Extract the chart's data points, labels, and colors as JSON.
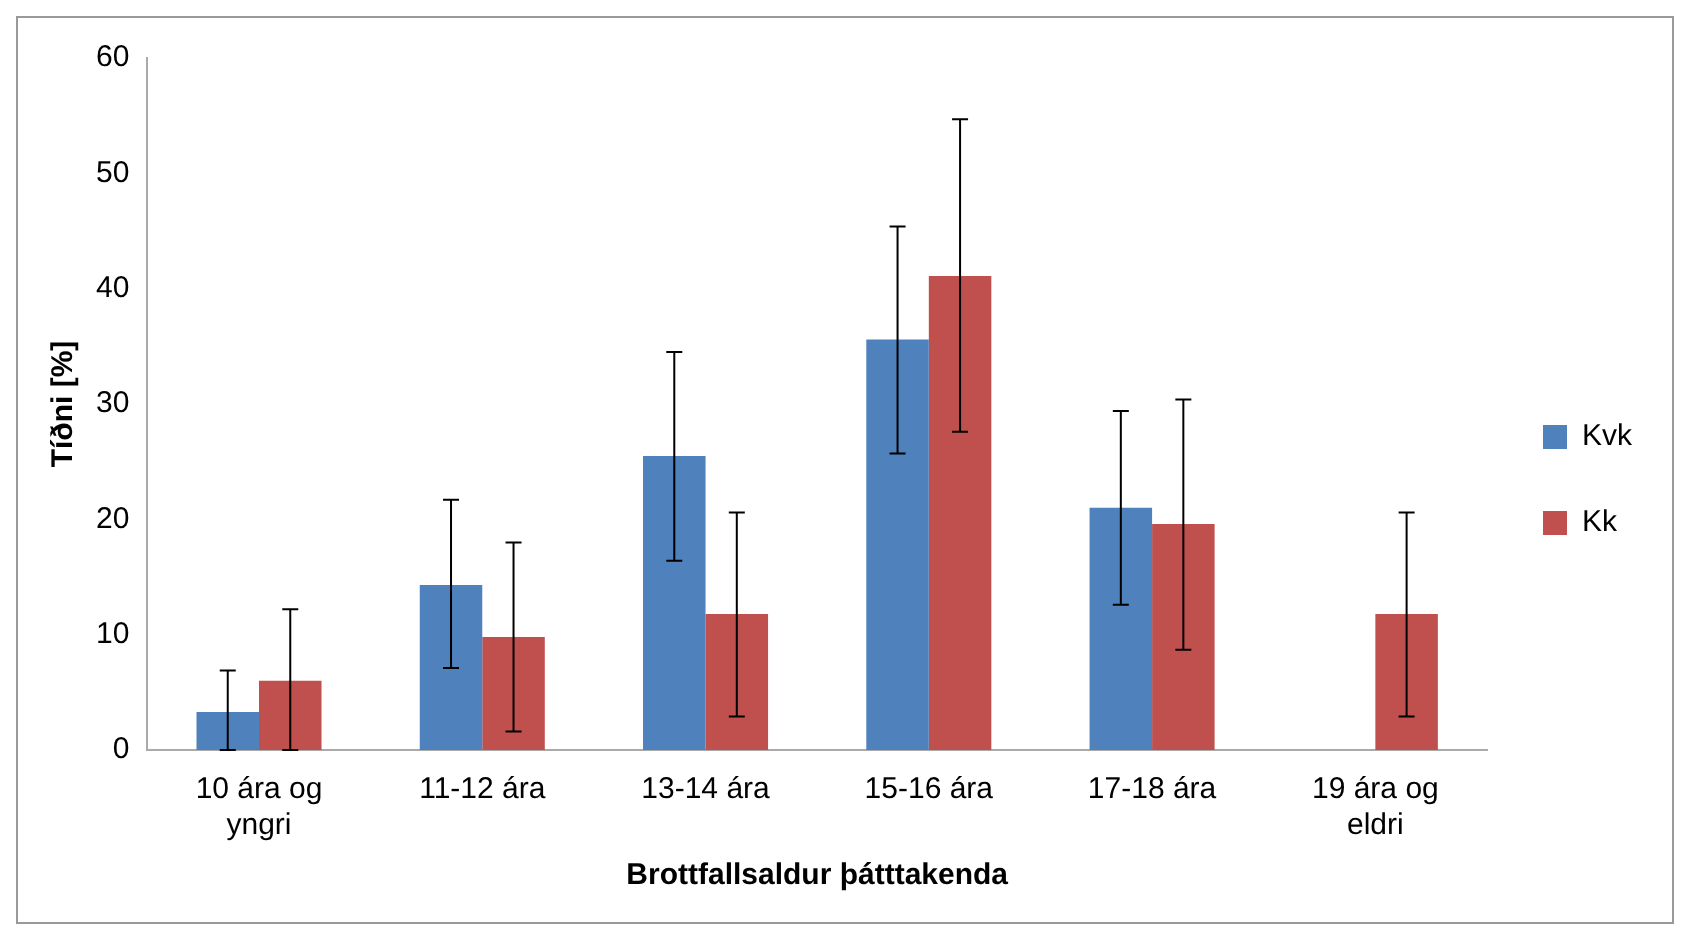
{
  "chart_data": {
    "type": "bar",
    "xlabel": "Brottfallsaldur þátttakenda",
    "ylabel": "Tíðni [%]",
    "categories": [
      "10 ára og yngri",
      "11-12 ára",
      "13-14 ára",
      "15-16 ára",
      "17-18 ára",
      "19 ára og eldri"
    ],
    "series": [
      {
        "name": "Kvk",
        "color": "#4f81bd",
        "values": [
          3.3,
          14.3,
          25.5,
          35.6,
          21.0,
          null
        ],
        "errors": [
          [
            0,
            6.9
          ],
          [
            7.1,
            21.7
          ],
          [
            16.4,
            34.5
          ],
          [
            25.7,
            45.4
          ],
          [
            12.6,
            29.4
          ],
          null
        ]
      },
      {
        "name": "Kk",
        "color": "#c0504d",
        "values": [
          6.0,
          9.8,
          11.8,
          41.1,
          19.6,
          11.8
        ],
        "errors": [
          [
            0,
            12.2
          ],
          [
            1.6,
            18.0
          ],
          [
            2.9,
            20.6
          ],
          [
            27.6,
            54.7
          ],
          [
            8.7,
            30.4
          ],
          [
            2.9,
            20.6
          ]
        ]
      }
    ],
    "ylim": [
      0,
      60
    ],
    "yticks": [
      0,
      10,
      20,
      30,
      40,
      50,
      60
    ],
    "grid": false,
    "legend": "right"
  }
}
